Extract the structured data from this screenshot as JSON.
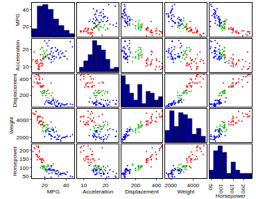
{
  "chart_data": {
    "type": "scatter_matrix",
    "color": "#00008b",
    "dimensions": [
      {
        "label": "MPG",
        "lim": [
          8,
          48
        ],
        "ticks": [
          20,
          40
        ],
        "bins": [
          8,
          13,
          18,
          23,
          28,
          33,
          38,
          43,
          48
        ]
      },
      {
        "label": "Acceleration",
        "lim": [
          7,
          26
        ],
        "ticks": [
          10,
          20
        ],
        "bins": [
          8,
          10,
          12,
          14,
          16,
          18,
          20,
          22,
          24,
          26
        ]
      },
      {
        "label": "Displacement",
        "lim": [
          60,
          460
        ],
        "ticks": [
          200,
          400
        ],
        "bins": [
          60,
          100,
          140,
          180,
          220,
          260,
          300,
          340,
          380,
          420,
          460
        ]
      },
      {
        "label": "Weight",
        "lim": [
          1500,
          5200
        ],
        "ticks": [
          2000,
          4000
        ],
        "bins": [
          1500,
          1900,
          2300,
          2700,
          3100,
          3500,
          3900,
          4300,
          4700,
          5100
        ]
      },
      {
        "label": "Horsepower",
        "lim": [
          40,
          235
        ],
        "ticks": [
          50,
          100,
          150,
          200
        ],
        "bins": [
          40,
          60,
          80,
          100,
          120,
          140,
          160,
          180,
          200,
          220,
          240
        ]
      }
    ],
    "series": [
      {
        "color": "#ff0000",
        "values": [
          [
            18,
            12,
            307,
            3504,
            130
          ],
          [
            15,
            11.5,
            350,
            3693,
            165
          ],
          [
            18,
            11,
            318,
            3436,
            150
          ],
          [
            16,
            12,
            304,
            3433,
            150
          ],
          [
            17,
            10.5,
            302,
            3449,
            140
          ],
          [
            15,
            10,
            429,
            4341,
            198
          ],
          [
            14,
            9,
            454,
            4354,
            220
          ],
          [
            14,
            8.5,
            440,
            4312,
            215
          ],
          [
            14,
            10,
            455,
            4425,
            225
          ],
          [
            15,
            8.5,
            390,
            3850,
            190
          ],
          [
            14,
            11,
            340,
            3609,
            160
          ],
          [
            15,
            10,
            400,
            3761,
            150
          ],
          [
            13,
            12,
            350,
            4274,
            165
          ],
          [
            12,
            13.5,
            400,
            4906,
            175
          ],
          [
            13,
            13,
            350,
            4100,
            145
          ],
          [
            11,
            13,
            429,
            4633,
            208
          ],
          [
            12,
            12,
            455,
            4951,
            225
          ],
          [
            13,
            14,
            360,
            3940,
            175
          ],
          [
            16,
            14,
            318,
            3880,
            150
          ],
          [
            17,
            13.5,
            302,
            3820,
            130
          ],
          [
            19,
            15,
            318,
            3735,
            140
          ],
          [
            18,
            14.5,
            400,
            4220,
            150
          ],
          [
            16,
            17,
            351,
            4380,
            149
          ],
          [
            20,
            15.5,
            260,
            3380,
            110
          ],
          [
            17,
            12,
            305,
            3840,
            145
          ],
          [
            23,
            17,
            262,
            3425,
            110
          ],
          [
            26,
            19,
            350,
            3725,
            105
          ],
          [
            10,
            18.5,
            360,
            4615,
            215
          ],
          [
            9,
            14,
            304,
            4732,
            193
          ]
        ]
      },
      {
        "color": "#00c000",
        "values": [
          [
            18,
            15,
            199,
            2774,
            97
          ],
          [
            21,
            15.5,
            200,
            2587,
            85
          ],
          [
            19,
            16,
            232,
            2634,
            100
          ],
          [
            22,
            16.5,
            250,
            3139,
            105
          ],
          [
            18,
            17,
            225,
            3086,
            105
          ],
          [
            20,
            18,
            250,
            3282,
            100
          ],
          [
            19,
            19,
            258,
            3302,
            110
          ],
          [
            16,
            20,
            250,
            3800,
            100
          ],
          [
            17,
            21,
            231,
            3445,
            110
          ],
          [
            21,
            16,
            198,
            2833,
            95
          ],
          [
            24,
            15,
            225,
            3060,
            110
          ],
          [
            20,
            17.5,
            232,
            3265,
            90
          ],
          [
            26,
            18.5,
            200,
            2962,
            85
          ],
          [
            19,
            14.5,
            231,
            3245,
            110
          ],
          [
            22,
            19.5,
            225,
            3430,
            90
          ],
          [
            18,
            21,
            250,
            3645,
            110
          ],
          [
            27,
            16.5,
            232,
            3150,
            112
          ],
          [
            23,
            15.5,
            173,
            2725,
            115
          ],
          [
            28,
            13,
            168,
            2910,
            120
          ],
          [
            30,
            19,
            145,
            3160,
            76
          ]
        ]
      },
      {
        "color": "#0000ff",
        "values": [
          [
            24,
            15,
            113,
            2372,
            95
          ],
          [
            27,
            15.5,
            97,
            2130,
            88
          ],
          [
            26,
            20.5,
            97,
            1835,
            46
          ],
          [
            25,
            17.5,
            110,
            2672,
            87
          ],
          [
            24,
            14.5,
            107,
            2430,
            90
          ],
          [
            25,
            17,
            104,
            2375,
            95
          ],
          [
            26,
            12.5,
            121,
            2234,
            113
          ],
          [
            31,
            19,
            71,
            1773,
            65
          ],
          [
            35,
            19,
            72,
            1613,
            69
          ],
          [
            32,
            19.5,
            71,
            1836,
            65
          ],
          [
            28,
            16,
            140,
            2790,
            86
          ],
          [
            29,
            14.5,
            98,
            2035,
            83
          ],
          [
            33,
            18,
            91,
            1795,
            53
          ],
          [
            30,
            21,
            79,
            2074,
            67
          ],
          [
            36,
            17.5,
            98,
            1945,
            66
          ],
          [
            38,
            16,
            85,
            2020,
            70
          ],
          [
            44,
            24.5,
            97,
            2130,
            52
          ],
          [
            46,
            21.5,
            90,
            2335,
            48
          ],
          [
            41,
            14.5,
            98,
            2144,
            76
          ],
          [
            37,
            18,
            91,
            2025,
            68
          ],
          [
            34,
            15,
            105,
            2200,
            63
          ],
          [
            27,
            21,
            140,
            2860,
            70
          ],
          [
            23,
            22,
            120,
            2979,
            88
          ],
          [
            22,
            23.5,
            140,
            2890,
            78
          ],
          [
            20,
            24.8,
            97,
            2130,
            46
          ],
          [
            29,
            16,
            120,
            2625,
            88
          ],
          [
            31,
            15.5,
            119,
            2720,
            82
          ],
          [
            39,
            16,
            86,
            2045,
            65
          ],
          [
            32,
            20,
            135,
            2295,
            84
          ],
          [
            26,
            14,
            122,
            2220,
            86
          ],
          [
            28,
            18,
            151,
            2945,
            90
          ],
          [
            24,
            25,
            140,
            2720,
            67
          ],
          [
            33,
            17,
            107,
            2065,
            75
          ],
          [
            40,
            19,
            89,
            2110,
            62
          ],
          [
            35,
            15.5,
            81,
            1760,
            60
          ],
          [
            21,
            16,
            122,
            2740,
            87
          ]
        ]
      }
    ]
  }
}
